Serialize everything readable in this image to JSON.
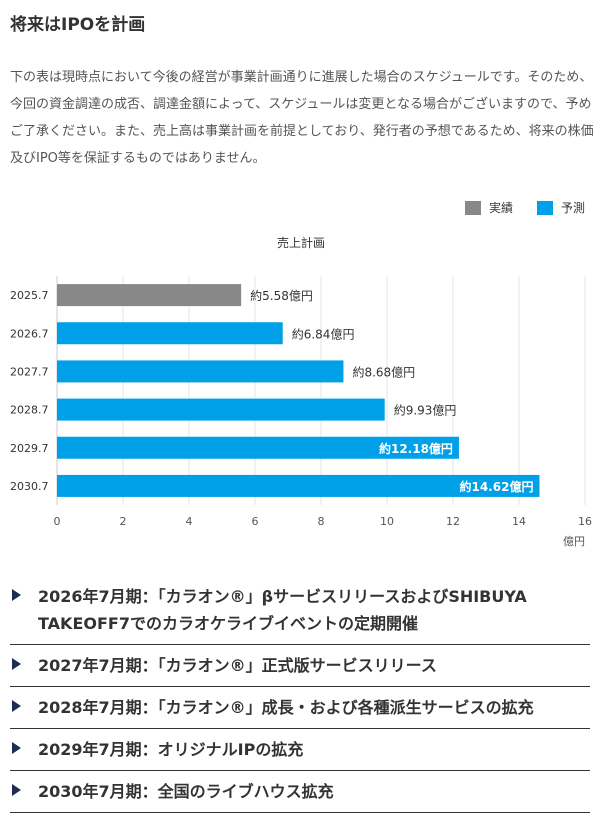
{
  "title": "将来はIPOを計画",
  "intro": "下の表は現時点において今後の経営が事業計画通りに進展した場合のスケジュールです。そのため、今回の資金調達の成否、調達金額によって、スケジュールは変更となる場合がございますので、予めご了承ください。また、売上高は事業計画を前提としており、発行者の予想であるため、将来の株価及びIPO等を保証するものではありません。",
  "legend": [
    {
      "label": "実績",
      "color": "#888888"
    },
    {
      "label": "予測",
      "color": "#00a0e9"
    }
  ],
  "chart_data": {
    "type": "bar",
    "orientation": "horizontal",
    "title": "売上計画",
    "categories": [
      "2025.7",
      "2026.7",
      "2027.7",
      "2028.7",
      "2029.7",
      "2030.7"
    ],
    "values": [
      5.58,
      6.84,
      8.68,
      9.93,
      12.18,
      14.62
    ],
    "data_labels": [
      "約5.58億円",
      "約6.84億円",
      "約8.68億円",
      "約9.93億円",
      "約12.18億円",
      "約14.62億円"
    ],
    "series_kind": [
      "実績",
      "予測",
      "予測",
      "予測",
      "予測",
      "予測"
    ],
    "colors": {
      "実績": "#888888",
      "予測": "#00a0e9"
    },
    "xlim": [
      0,
      16
    ],
    "xticks": [
      0,
      2,
      4,
      6,
      8,
      10,
      12,
      14,
      16
    ],
    "xlabel": "億円",
    "grid": true
  },
  "milestones": [
    "2026年7月期：「カラオン®」βサービスリリースおよびSHIBUYA TAKEOFF7でのカラオケライブイベントの定期開催",
    "2027年7月期：「カラオン®」正式版サービスリリース",
    "2028年7月期：「カラオン®」成長・および各種派生サービスの拡充",
    "2029年7月期：オリジナルIPの拡充",
    "2030年7月期：全国のライブハウス拡充"
  ]
}
